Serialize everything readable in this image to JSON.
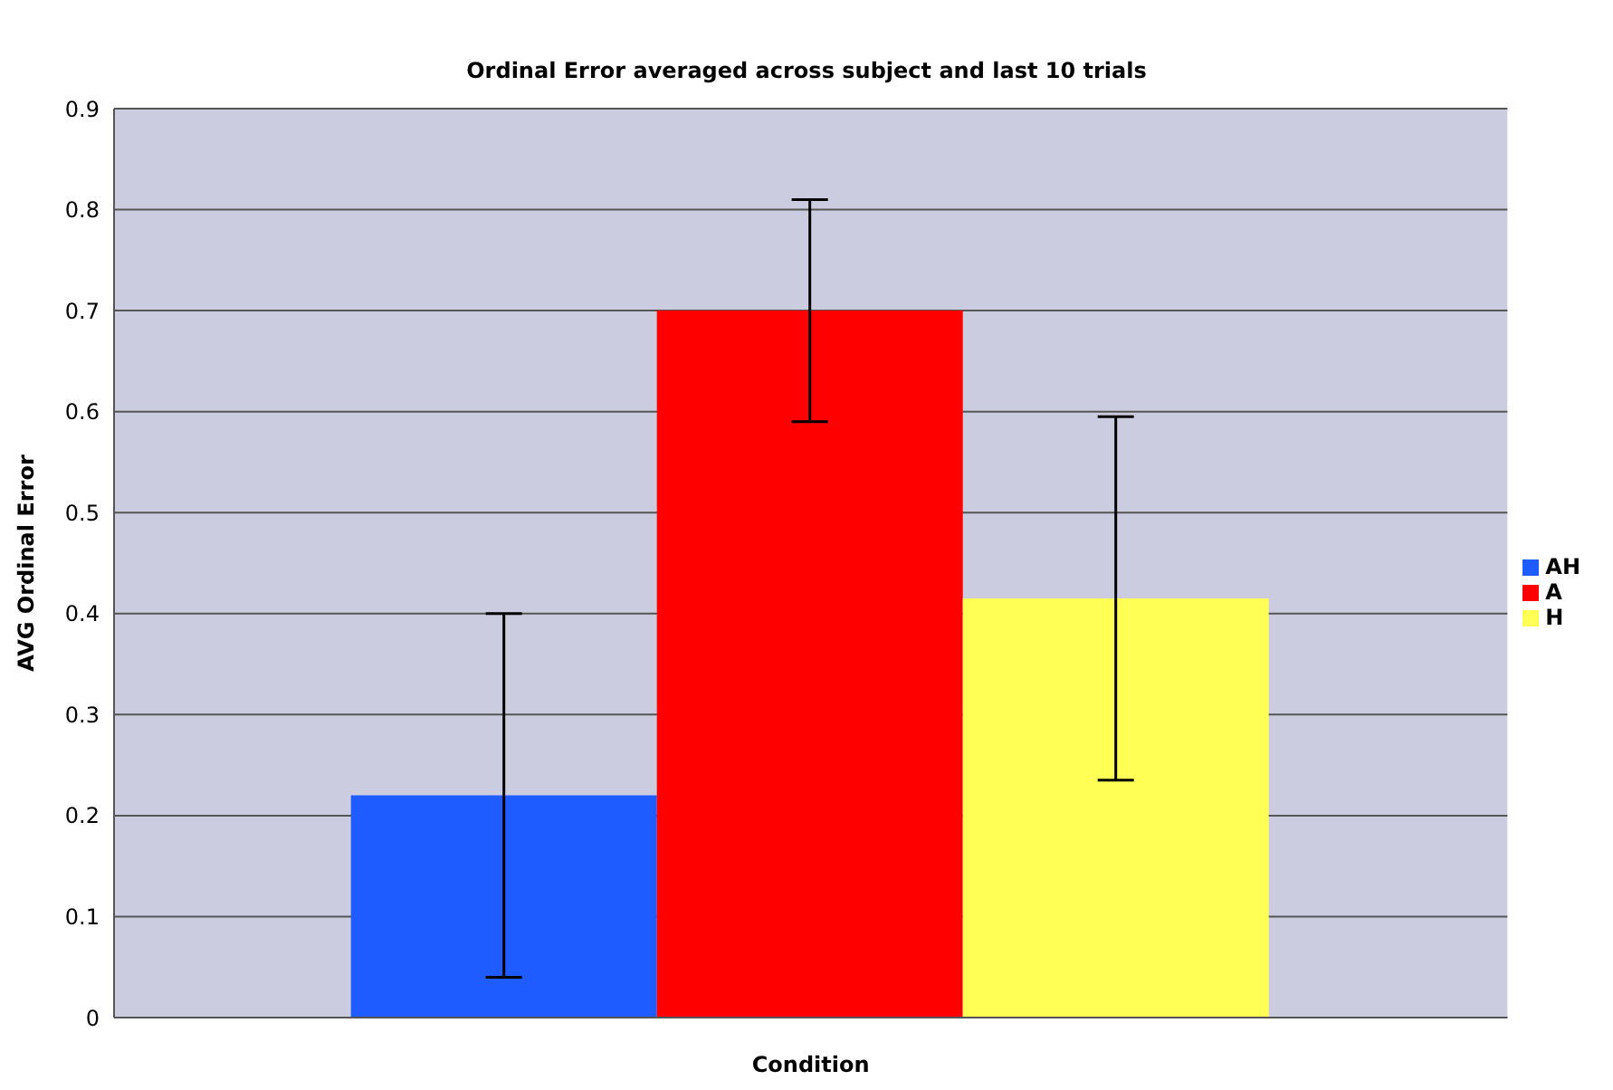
{
  "chart_data": {
    "type": "bar",
    "title": "Ordinal Error averaged across subject and last 10 trials",
    "xlabel": "Condition",
    "ylabel": "AVG Ordinal Error",
    "categories": [
      null
    ],
    "series": [
      {
        "name": "AH",
        "color": "#1f5cff",
        "values": [
          0.22
        ],
        "errors": [
          0.18
        ]
      },
      {
        "name": "A",
        "color": "#ff0000",
        "values": [
          0.7
        ],
        "errors": [
          0.11
        ]
      },
      {
        "name": "H",
        "color": "#ffff55",
        "values": [
          0.415
        ],
        "errors": [
          0.18
        ]
      }
    ],
    "ylim": [
      0,
      0.9
    ],
    "yticks": [
      0,
      0.1,
      0.2,
      0.3,
      0.4,
      0.5,
      0.6,
      0.7,
      0.8,
      0.9
    ],
    "grid": "y",
    "legend": "right"
  }
}
